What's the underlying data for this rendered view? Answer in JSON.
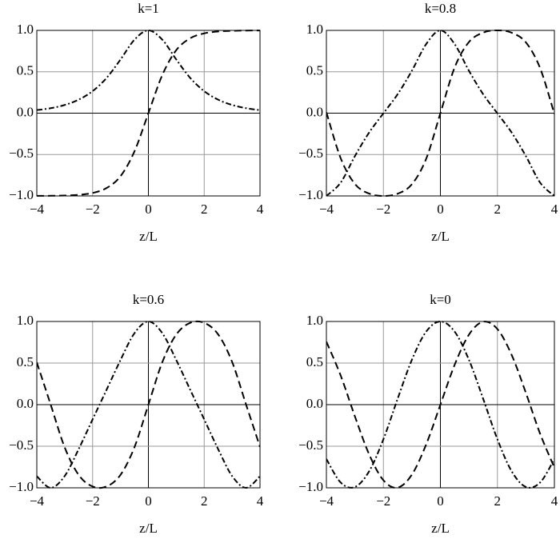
{
  "chart_data": [
    {
      "type": "line",
      "title": "k=1",
      "x_label": "z/L",
      "x": [
        -4,
        -3.5,
        -3,
        -2.5,
        -2,
        -1.5,
        -1,
        -0.5,
        0,
        0.5,
        1,
        1.5,
        2,
        2.5,
        3,
        3.5,
        4
      ],
      "series": [
        {
          "color": "#000000",
          "dash": "dashed",
          "values": [
            -0.999,
            -0.998,
            -0.995,
            -0.987,
            -0.964,
            -0.905,
            -0.762,
            -0.462,
            0,
            0.462,
            0.762,
            0.905,
            0.964,
            0.987,
            0.995,
            0.998,
            0.999
          ]
        },
        {
          "color": "#000000",
          "dash": "dashdot",
          "values": [
            0.037,
            0.06,
            0.099,
            0.163,
            0.266,
            0.425,
            0.648,
            0.887,
            1,
            0.887,
            0.648,
            0.425,
            0.266,
            0.163,
            0.099,
            0.06,
            0.037
          ]
        }
      ],
      "xlim": [
        -4,
        4
      ],
      "ylim": [
        -1,
        1
      ],
      "xticks": [
        {
          "value": -4,
          "label": "−4"
        },
        {
          "value": -2,
          "label": "−2"
        },
        0,
        2,
        4
      ],
      "yticks": [
        {
          "value": -1,
          "label": "−1.0"
        },
        {
          "value": -0.5,
          "label": "−0.5"
        },
        {
          "value": 0,
          "label": "0.0"
        },
        0.5,
        {
          "value": 1,
          "label": "1.0"
        }
      ],
      "grid": true
    },
    {
      "type": "line",
      "title": "k=0.8",
      "x_label": "z/L",
      "x": [
        -4,
        -3.5,
        -3,
        -2.5,
        -2,
        -1.5,
        -1,
        -0.5,
        0,
        0.5,
        1,
        1.5,
        2,
        2.5,
        3,
        3.5,
        4
      ],
      "series": [
        {
          "color": "#000000",
          "dash": "dashed",
          "values": [
            0.011,
            -0.543,
            -0.855,
            -0.972,
            -1.0,
            -0.973,
            -0.859,
            -0.552,
            0,
            0.552,
            0.859,
            0.973,
            1.0,
            0.972,
            0.855,
            0.543,
            -0.011
          ]
        },
        {
          "color": "#000000",
          "dash": "dashdot",
          "values": [
            -1.0,
            -0.84,
            -0.519,
            -0.234,
            -0.002,
            0.229,
            0.513,
            0.834,
            1,
            0.834,
            0.513,
            0.229,
            -0.002,
            -0.234,
            -0.519,
            -0.84,
            -1.0
          ]
        }
      ],
      "xlim": [
        -4,
        4
      ],
      "ylim": [
        -1,
        1
      ],
      "xticks": [
        {
          "value": -4,
          "label": "−4"
        },
        {
          "value": -2,
          "label": "−2"
        },
        0,
        2,
        4
      ],
      "yticks": [
        {
          "value": -1,
          "label": "−1.0"
        },
        {
          "value": -0.5,
          "label": "−0.5"
        },
        {
          "value": 0,
          "label": "0.0"
        },
        0.5,
        {
          "value": 1,
          "label": "1.0"
        }
      ],
      "grid": true
    },
    {
      "type": "line",
      "title": "k=0.6",
      "x_label": "z/L",
      "x": [
        -4,
        -3.5,
        -3,
        -2.5,
        -2,
        -1.5,
        -1,
        -0.5,
        0,
        0.5,
        1,
        1.5,
        2,
        2.5,
        3,
        3.5,
        4
      ],
      "series": [
        {
          "color": "#000000",
          "dash": "dashed",
          "values": [
            0.508,
            -0.002,
            -0.514,
            -0.845,
            -0.984,
            -0.984,
            -0.844,
            -0.512,
            0,
            0.512,
            0.844,
            0.984,
            0.984,
            0.845,
            0.514,
            0.002,
            -0.508
          ]
        },
        {
          "color": "#000000",
          "dash": "dashdot",
          "values": [
            -0.861,
            -1.0,
            -0.858,
            -0.535,
            -0.177,
            0.178,
            0.536,
            0.859,
            1,
            0.859,
            0.536,
            0.178,
            -0.177,
            -0.535,
            -0.858,
            -1.0,
            -0.861
          ]
        }
      ],
      "xlim": [
        -4,
        4
      ],
      "ylim": [
        -1,
        1
      ],
      "xticks": [
        {
          "value": -4,
          "label": "−4"
        },
        {
          "value": -2,
          "label": "−2"
        },
        0,
        2,
        4
      ],
      "yticks": [
        {
          "value": -1,
          "label": "−1.0"
        },
        {
          "value": -0.5,
          "label": "−0.5"
        },
        {
          "value": 0,
          "label": "0.0"
        },
        0.5,
        {
          "value": 1,
          "label": "1.0"
        }
      ],
      "grid": true
    },
    {
      "type": "line",
      "title": "k=0",
      "x_label": "z/L",
      "x": [
        -4,
        -3.5,
        -3,
        -2.5,
        -2,
        -1.5,
        -1,
        -0.5,
        0,
        0.5,
        1,
        1.5,
        2,
        2.5,
        3,
        3.5,
        4
      ],
      "series": [
        {
          "color": "#000000",
          "dash": "dashed",
          "values": [
            0.757,
            0.351,
            -0.141,
            -0.598,
            -0.909,
            -0.997,
            -0.841,
            -0.479,
            0,
            0.479,
            0.841,
            0.997,
            0.909,
            0.598,
            0.141,
            -0.351,
            -0.757
          ]
        },
        {
          "color": "#000000",
          "dash": "dashdot",
          "values": [
            -0.654,
            -0.936,
            -0.99,
            -0.801,
            -0.416,
            0.071,
            0.54,
            0.878,
            1,
            0.878,
            0.54,
            0.071,
            -0.416,
            -0.801,
            -0.99,
            -0.936,
            -0.654
          ]
        }
      ],
      "xlim": [
        -4,
        4
      ],
      "ylim": [
        -1,
        1
      ],
      "xticks": [
        {
          "value": -4,
          "label": "−4"
        },
        {
          "value": -2,
          "label": "−2"
        },
        0,
        2,
        4
      ],
      "yticks": [
        {
          "value": -1,
          "label": "−1.0"
        },
        {
          "value": -0.5,
          "label": "−0.5"
        },
        {
          "value": 0,
          "label": "0.0"
        },
        0.5,
        {
          "value": 1,
          "label": "1.0"
        }
      ],
      "grid": true
    }
  ]
}
